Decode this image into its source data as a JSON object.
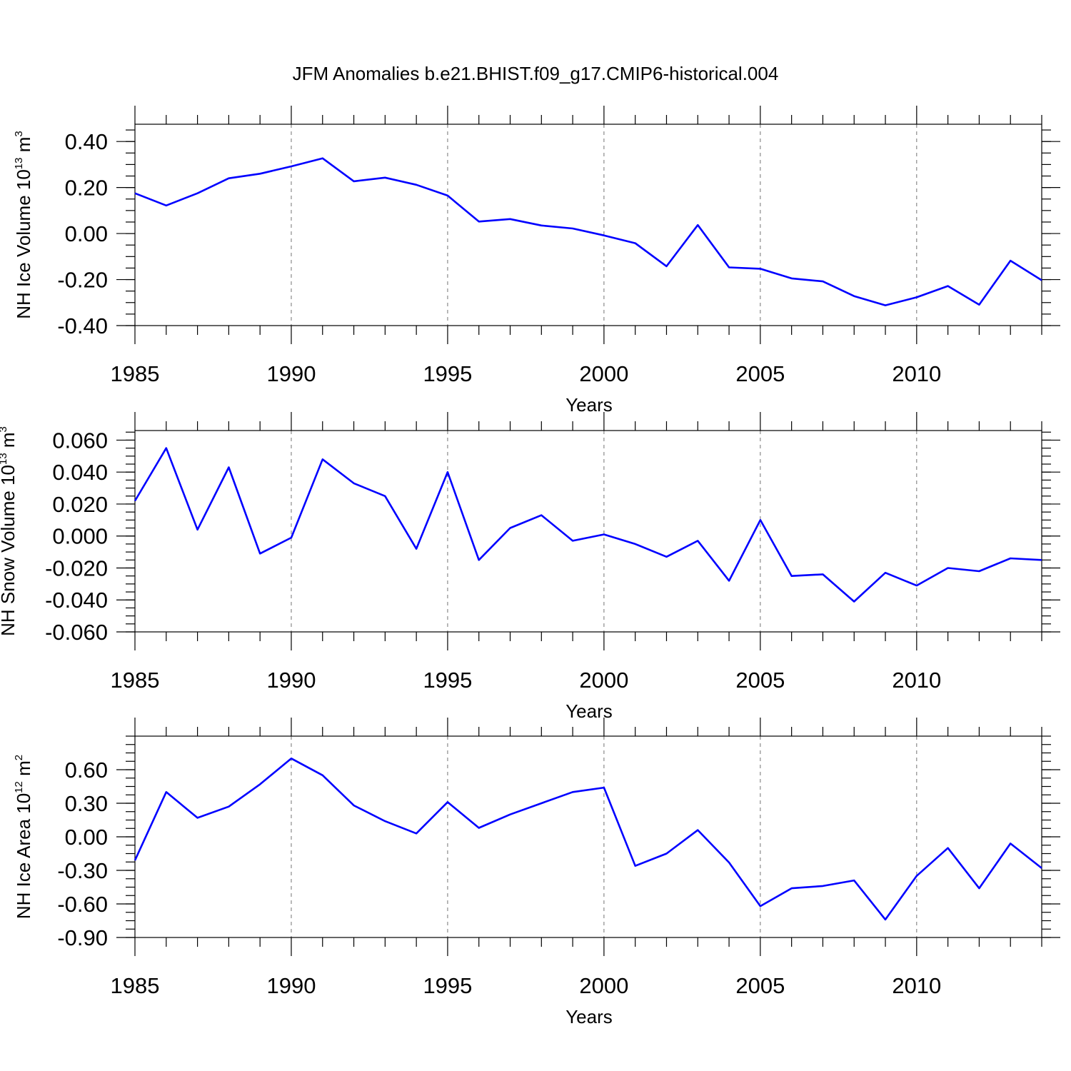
{
  "figure_title": "JFM Anomalies b.e21.BHIST.f09_g17.CMIP6-historical.004",
  "colors": {
    "line": "#0000ff",
    "axes": "#000000",
    "background": "#ffffff"
  },
  "chart_data": [
    {
      "type": "line",
      "ylabel": "NH Ice Volume 10",
      "ylabel_exp": "13",
      "ylabel_unit": "m",
      "ylabel_unit_exp": "3",
      "xlabel": "Years",
      "xlim": [
        1985,
        2014
      ],
      "ylim": [
        -0.4,
        0.475
      ],
      "xticks": [
        1985,
        1990,
        1995,
        2000,
        2005,
        2010
      ],
      "xtick_labels": [
        "1985",
        "1990",
        "1995",
        "2000",
        "2005",
        "2010"
      ],
      "yticks": [
        -0.4,
        -0.2,
        0.0,
        0.2,
        0.4
      ],
      "ytick_labels": [
        "-0.40",
        "-0.20",
        "0.00",
        "0.20",
        "0.40"
      ],
      "y_minor_step": 0.05,
      "grid_x": true,
      "series": [
        {
          "name": "NH Ice Volume",
          "x": [
            1985,
            1986,
            1987,
            1988,
            1989,
            1990,
            1991,
            1992,
            1993,
            1994,
            1995,
            1996,
            1997,
            1998,
            1999,
            2000,
            2001,
            2002,
            2003,
            2004,
            2005,
            2006,
            2007,
            2008,
            2009,
            2010,
            2011,
            2012,
            2013,
            2014
          ],
          "values": [
            0.175,
            0.122,
            0.175,
            0.24,
            0.26,
            0.292,
            0.327,
            0.227,
            0.243,
            0.212,
            0.165,
            0.052,
            0.063,
            0.035,
            0.022,
            -0.008,
            -0.042,
            -0.142,
            0.037,
            -0.147,
            -0.153,
            -0.195,
            -0.208,
            -0.272,
            -0.312,
            -0.277,
            -0.228,
            -0.309,
            -0.118,
            -0.203
          ]
        }
      ]
    },
    {
      "type": "line",
      "ylabel": "NH Snow Volume 10",
      "ylabel_exp": "13",
      "ylabel_unit": "m",
      "ylabel_unit_exp": "3",
      "xlabel": "Years",
      "xlim": [
        1985,
        2014
      ],
      "ylim": [
        -0.06,
        0.066
      ],
      "xticks": [
        1985,
        1990,
        1995,
        2000,
        2005,
        2010
      ],
      "xtick_labels": [
        "1985",
        "1990",
        "1995",
        "2000",
        "2005",
        "2010"
      ],
      "yticks": [
        -0.06,
        -0.04,
        -0.02,
        0.0,
        0.02,
        0.04,
        0.06
      ],
      "ytick_labels": [
        "-0.060",
        "-0.040",
        "-0.020",
        "0.000",
        "0.020",
        "0.040",
        "0.060"
      ],
      "y_minor_step": 0.005,
      "grid_x": true,
      "series": [
        {
          "name": "NH Snow Volume",
          "x": [
            1985,
            1986,
            1987,
            1988,
            1989,
            1990,
            1991,
            1992,
            1993,
            1994,
            1995,
            1996,
            1997,
            1998,
            1999,
            2000,
            2001,
            2002,
            2003,
            2004,
            2005,
            2006,
            2007,
            2008,
            2009,
            2010,
            2011,
            2012,
            2013,
            2014
          ],
          "values": [
            0.022,
            0.055,
            0.004,
            0.043,
            -0.011,
            -0.001,
            0.048,
            0.033,
            0.025,
            -0.008,
            0.04,
            -0.015,
            0.005,
            0.013,
            -0.003,
            0.001,
            -0.005,
            -0.013,
            -0.003,
            -0.028,
            0.01,
            -0.025,
            -0.024,
            -0.041,
            -0.023,
            -0.031,
            -0.02,
            -0.022,
            -0.014,
            -0.015
          ]
        }
      ]
    },
    {
      "type": "line",
      "ylabel": "NH Ice Area 10",
      "ylabel_exp": "12",
      "ylabel_unit": "m",
      "ylabel_unit_exp": "2",
      "xlabel": "Years",
      "xlim": [
        1985,
        2014
      ],
      "ylim": [
        -0.9,
        0.9
      ],
      "xticks": [
        1985,
        1990,
        1995,
        2000,
        2005,
        2010
      ],
      "xtick_labels": [
        "1985",
        "1990",
        "1995",
        "2000",
        "2005",
        "2010"
      ],
      "yticks": [
        -0.9,
        -0.6,
        -0.3,
        0.0,
        0.3,
        0.6
      ],
      "ytick_labels": [
        "-0.90",
        "-0.60",
        "-0.30",
        "0.00",
        "0.30",
        "0.60"
      ],
      "y_minor_step": 0.075,
      "grid_x": true,
      "series": [
        {
          "name": "NH Ice Area",
          "x": [
            1985,
            1986,
            1987,
            1988,
            1989,
            1990,
            1991,
            1992,
            1993,
            1994,
            1995,
            1996,
            1997,
            1998,
            1999,
            2000,
            2001,
            2002,
            2003,
            2004,
            2005,
            2006,
            2007,
            2008,
            2009,
            2010,
            2011,
            2012,
            2013,
            2014
          ],
          "values": [
            -0.21,
            0.4,
            0.17,
            0.27,
            0.47,
            0.7,
            0.55,
            0.28,
            0.14,
            0.03,
            0.31,
            0.08,
            0.2,
            0.3,
            0.4,
            0.44,
            -0.26,
            -0.15,
            0.06,
            -0.23,
            -0.62,
            -0.46,
            -0.44,
            -0.39,
            -0.74,
            -0.35,
            -0.1,
            -0.46,
            -0.06,
            -0.28
          ]
        }
      ]
    }
  ]
}
